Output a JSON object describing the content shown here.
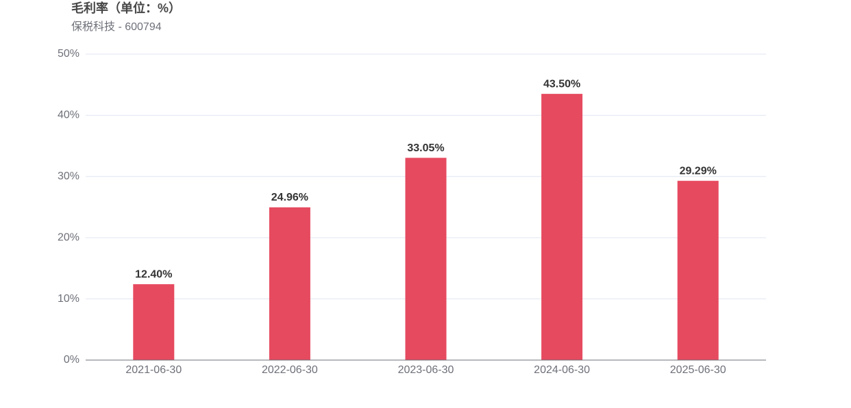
{
  "chart_data": {
    "type": "bar",
    "title": "毛利率（单位：%）",
    "subtitle": "保税科技 - 600794",
    "categories": [
      "2021-06-30",
      "2022-06-30",
      "2023-06-30",
      "2024-06-30",
      "2025-06-30"
    ],
    "values": [
      12.4,
      24.96,
      33.05,
      43.5,
      29.29
    ],
    "value_labels": [
      "12.40%",
      "24.96%",
      "33.05%",
      "43.50%",
      "29.29%"
    ],
    "color": "#e64a5f",
    "ylim": [
      0,
      50
    ],
    "yticks": [
      {
        "value": 0,
        "label": "0%"
      },
      {
        "value": 10,
        "label": "10%"
      },
      {
        "value": 20,
        "label": "20%"
      },
      {
        "value": 30,
        "label": "30%"
      },
      {
        "value": 40,
        "label": "40%"
      },
      {
        "value": 50,
        "label": "50%"
      }
    ],
    "grid": true
  }
}
